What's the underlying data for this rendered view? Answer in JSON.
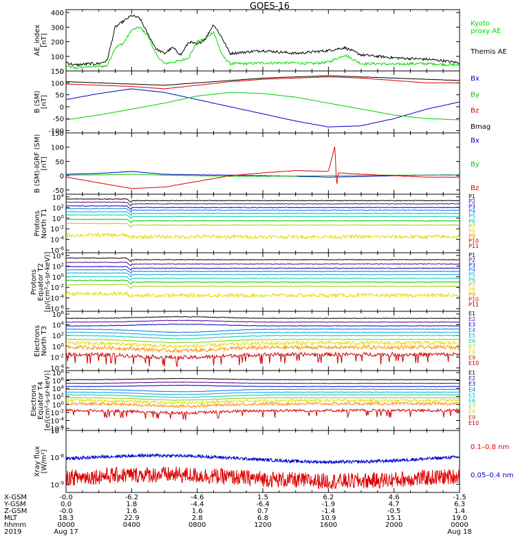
{
  "title": "GOES-16",
  "chart_data": [
    {
      "type": "line",
      "ylabel": [
        "AE_index",
        "[nT]"
      ],
      "ylim": [
        0,
        420
      ],
      "yticks": [
        "0",
        "100",
        "200",
        "300",
        "400"
      ],
      "series": [
        {
          "name": "Kyoto proxy AE",
          "legend": [
            "Kyoto",
            "proxy AE"
          ],
          "color": "#00dd00",
          "x": [
            0,
            0.5,
            1,
            1.5,
            2,
            2.5,
            3,
            3.5,
            4,
            4.5,
            5,
            5.5,
            6,
            6.5,
            7,
            7.5,
            8,
            8.5,
            9,
            9.5,
            10,
            11,
            12,
            13,
            14,
            15,
            16,
            17,
            18,
            19,
            20,
            21,
            22,
            23,
            24
          ],
          "values": [
            35,
            20,
            25,
            30,
            30,
            35,
            160,
            190,
            280,
            300,
            240,
            110,
            50,
            60,
            70,
            95,
            200,
            220,
            270,
            110,
            50,
            50,
            55,
            55,
            55,
            50,
            60,
            110,
            50,
            50,
            45,
            50,
            50,
            45,
            40
          ]
        },
        {
          "name": "Themis AE",
          "legend": [
            "Themis AE"
          ],
          "color": "#000000",
          "x": [
            0,
            0.5,
            1,
            1.5,
            2,
            2.5,
            3,
            3.5,
            4,
            4.5,
            5,
            5.5,
            6,
            6.5,
            7,
            7.5,
            8,
            8.5,
            9,
            9.5,
            10,
            11,
            12,
            13,
            14,
            15,
            16,
            17,
            18,
            19,
            20,
            21,
            22,
            23,
            24
          ],
          "values": [
            60,
            40,
            45,
            50,
            50,
            70,
            300,
            340,
            380,
            360,
            250,
            150,
            120,
            160,
            110,
            200,
            180,
            220,
            320,
            230,
            120,
            130,
            140,
            130,
            120,
            130,
            140,
            160,
            110,
            100,
            90,
            85,
            80,
            70,
            55
          ]
        }
      ]
    },
    {
      "type": "line",
      "ylabel": [
        "B (SM)",
        "[nT]"
      ],
      "ylim": [
        -110,
        150
      ],
      "yticks": [
        "-100",
        "-50",
        "0",
        "50",
        "100",
        "150"
      ],
      "series": [
        {
          "name": "Bx",
          "legend": [
            "Bx"
          ],
          "color": "#0000cc",
          "x": [
            0,
            2,
            4,
            6,
            8,
            10,
            12,
            14,
            16,
            18,
            20,
            22,
            24
          ],
          "values": [
            30,
            55,
            75,
            60,
            30,
            0,
            -30,
            -60,
            -85,
            -80,
            -50,
            -10,
            20
          ]
        },
        {
          "name": "By",
          "legend": [
            "By"
          ],
          "color": "#00cc00",
          "x": [
            0,
            2,
            4,
            6,
            8,
            10,
            12,
            14,
            16,
            18,
            20,
            22,
            24
          ],
          "values": [
            -55,
            -35,
            -10,
            15,
            45,
            60,
            55,
            40,
            15,
            -10,
            -35,
            -50,
            -55
          ]
        },
        {
          "name": "Bz",
          "legend": [
            "Bz"
          ],
          "color": "#dd0000",
          "x": [
            0,
            2,
            4,
            6,
            8,
            10,
            12,
            14,
            16,
            18,
            20,
            22,
            24
          ],
          "values": [
            95,
            90,
            85,
            75,
            90,
            105,
            115,
            120,
            125,
            120,
            110,
            100,
            100
          ]
        },
        {
          "name": "Bmag",
          "legend": [
            "Bmag"
          ],
          "color": "#000000",
          "x": [
            0,
            2,
            4,
            6,
            8,
            10,
            12,
            14,
            16,
            18,
            20,
            22,
            24
          ],
          "values": [
            105,
            100,
            95,
            90,
            100,
            110,
            120,
            125,
            130,
            125,
            120,
            115,
            110
          ]
        }
      ]
    },
    {
      "type": "line",
      "ylabel": [
        "B (SM)-IGRF (SM)",
        "[nT]"
      ],
      "ylim": [
        -65,
        150
      ],
      "yticks": [
        "-50",
        "0",
        "50",
        "100",
        "150"
      ],
      "series": [
        {
          "name": "Bx",
          "legend": [
            "Bx"
          ],
          "color": "#0000cc",
          "x": [
            0,
            2,
            4,
            6,
            8,
            10,
            12,
            14,
            16,
            18,
            20,
            22,
            24
          ],
          "values": [
            5,
            8,
            15,
            5,
            3,
            2,
            0,
            -2,
            -5,
            -3,
            0,
            2,
            3
          ]
        },
        {
          "name": "By",
          "legend": [
            "By"
          ],
          "color": "#00cc00",
          "x": [
            0,
            2,
            4,
            6,
            8,
            10,
            12,
            14,
            16,
            18,
            20,
            22,
            24
          ],
          "values": [
            2,
            3,
            5,
            2,
            0,
            -2,
            -2,
            -1,
            0,
            1,
            2,
            2,
            2
          ]
        },
        {
          "name": "Bz",
          "legend": [
            "Bz"
          ],
          "color": "#dd0000",
          "x": [
            0,
            2,
            4,
            6,
            8,
            10,
            12,
            14,
            16,
            16.4,
            16.5,
            16.6,
            18,
            20,
            22,
            24
          ],
          "values": [
            -5,
            -25,
            -45,
            -40,
            -20,
            0,
            10,
            18,
            15,
            105,
            -40,
            10,
            5,
            0,
            -5,
            -5
          ]
        }
      ]
    },
    {
      "type": "line",
      "log": true,
      "ylabel": [
        "Protons",
        "North T1"
      ],
      "yticks": [
        "10^4",
        "10^2",
        "10^0",
        "10^-2",
        "10^-4",
        "10^-6"
      ],
      "ylim_exp": [
        -6.5,
        4.5
      ],
      "series_names": [
        "P1",
        "P2",
        "P3",
        "P4",
        "P5",
        "P6",
        "P7",
        "P8",
        "P9",
        "P10",
        "P11"
      ],
      "base_exp": [
        3.3,
        2.7,
        2.0,
        1.5,
        0.9,
        0.3,
        -0.5,
        -1.3,
        -3.5,
        -5.0,
        -5.8
      ],
      "visible": [
        true,
        true,
        true,
        true,
        true,
        true,
        true,
        true,
        true,
        false,
        false
      ]
    },
    {
      "type": "line",
      "log": true,
      "ylabel": [
        "Protons",
        "Equator T2",
        "[p/(cm²-s-sr-keV)]"
      ],
      "yticks": [
        "10^4",
        "10^2",
        "10^0",
        "10^-2",
        "10^-4",
        "10^-6"
      ],
      "ylim_exp": [
        -6.5,
        4.5
      ],
      "series_names": [
        "P1",
        "P2",
        "P3",
        "P4",
        "P5",
        "P6",
        "P7",
        "P8",
        "P9",
        "P10",
        "P11"
      ],
      "base_exp": [
        3.2,
        2.4,
        1.6,
        1.0,
        0.4,
        -0.3,
        -1.0,
        -1.8,
        -3.5,
        -5.0,
        -5.8
      ],
      "visible": [
        true,
        true,
        true,
        true,
        true,
        true,
        true,
        true,
        true,
        false,
        false
      ]
    },
    {
      "type": "line",
      "log": true,
      "ylabel": [
        "Electrons",
        "North T3"
      ],
      "yticks": [
        "10^6",
        "10^4",
        "10^2",
        "10^0",
        "10^-2",
        "10^-4"
      ],
      "ylim_exp": [
        -4.5,
        6.5
      ],
      "series_names": [
        "E1",
        "E2",
        "E3",
        "E4",
        "E5",
        "E6",
        "E7",
        "E8",
        "E9",
        "E10"
      ],
      "base_exp": [
        5.2,
        4.5,
        3.8,
        3.2,
        2.6,
        2.0,
        1.3,
        0.6,
        -0.2,
        -1.5
      ],
      "visible": [
        true,
        true,
        true,
        true,
        true,
        true,
        true,
        true,
        true,
        true
      ]
    },
    {
      "type": "line",
      "log": true,
      "ylabel": [
        "Electrons",
        "Equator T4",
        "[e/(cm²-s-sr-keV)]"
      ],
      "yticks": [
        "10^8",
        "10^6",
        "10^4",
        "10^2",
        "10^0",
        "10^-2",
        "10^-4",
        "10^-6"
      ],
      "ylim_exp": [
        -6.5,
        8.5
      ],
      "series_names": [
        "E1",
        "E2",
        "E3",
        "E4",
        "E5",
        "E6",
        "E7",
        "E8",
        "E9",
        "E10"
      ],
      "base_exp": [
        6.2,
        5.3,
        4.5,
        3.8,
        3.1,
        2.4,
        1.7,
        1.0,
        0.2,
        -1.5
      ],
      "visible": [
        true,
        true,
        true,
        true,
        true,
        true,
        true,
        true,
        true,
        true
      ]
    },
    {
      "type": "line",
      "log": true,
      "ylabel": [
        "Xray flux",
        "[W/m²]"
      ],
      "yticks": [
        "10^-7",
        "10^-8",
        "10^-9"
      ],
      "ylim_exp": [
        -9.3,
        -7.0
      ],
      "series": [
        {
          "name": "0.1–0.8 nm",
          "color": "#dd0000",
          "base_exp": -8.85
        },
        {
          "name": "0.05–0.4 nm",
          "color": "#0000cc",
          "base_exp": -8.05
        }
      ]
    }
  ],
  "xaxis": {
    "xlim": [
      0,
      24
    ],
    "rows": [
      {
        "label": "X-GSM",
        "values": [
          "-0.0",
          "-6.2",
          "-4.6",
          "1.5",
          "6.2",
          "4.6",
          "-1.5"
        ]
      },
      {
        "label": "Y-GSM",
        "values": [
          "0.0",
          "1.8",
          "-4.4",
          "-6.4",
          "-1.9",
          "4.7",
          "6.3"
        ]
      },
      {
        "label": "Z-GSM",
        "values": [
          "-0.0",
          "1.6",
          "1.6",
          "0.7",
          "-1.4",
          "-0.5",
          "1.4"
        ]
      },
      {
        "label": "MLT",
        "values": [
          "18.3",
          "22.9",
          "2.8",
          "6.8",
          "10.9",
          "15.1",
          "19.0"
        ]
      },
      {
        "label": "hhmm",
        "values": [
          "0000",
          "0400",
          "0800",
          "1200",
          "1600",
          "2000",
          "0000"
        ]
      },
      {
        "label": "2019",
        "values": [
          "Aug 17",
          "",
          "",
          "",
          "",
          "",
          "Aug 18"
        ]
      }
    ]
  },
  "colors": {
    "p_palette": [
      "#000000",
      "#550088",
      "#0000cc",
      "#0077ee",
      "#00aadd",
      "#00ccaa",
      "#00cc00",
      "#aacc00",
      "#dddd00",
      "#ff8800",
      "#dd0000"
    ],
    "e_palette": [
      "#000000",
      "#550088",
      "#0000cc",
      "#0077ee",
      "#00aadd",
      "#00ccaa",
      "#88cc00",
      "#dddd00",
      "#ff8800",
      "#cc0000"
    ],
    "label_p": [
      "#000000",
      "#550088",
      "#0000cc",
      "#0077ee",
      "#00aadd",
      "#00ccaa",
      "#bbbb00",
      "#dddd00",
      "#ff8800",
      "#dd0000",
      "#aa0000"
    ],
    "label_e": [
      "#000000",
      "#550088",
      "#0000cc",
      "#0077ee",
      "#00aadd",
      "#00ccaa",
      "#bbbb00",
      "#dddd00",
      "#dd2200",
      "#aa0000"
    ]
  }
}
